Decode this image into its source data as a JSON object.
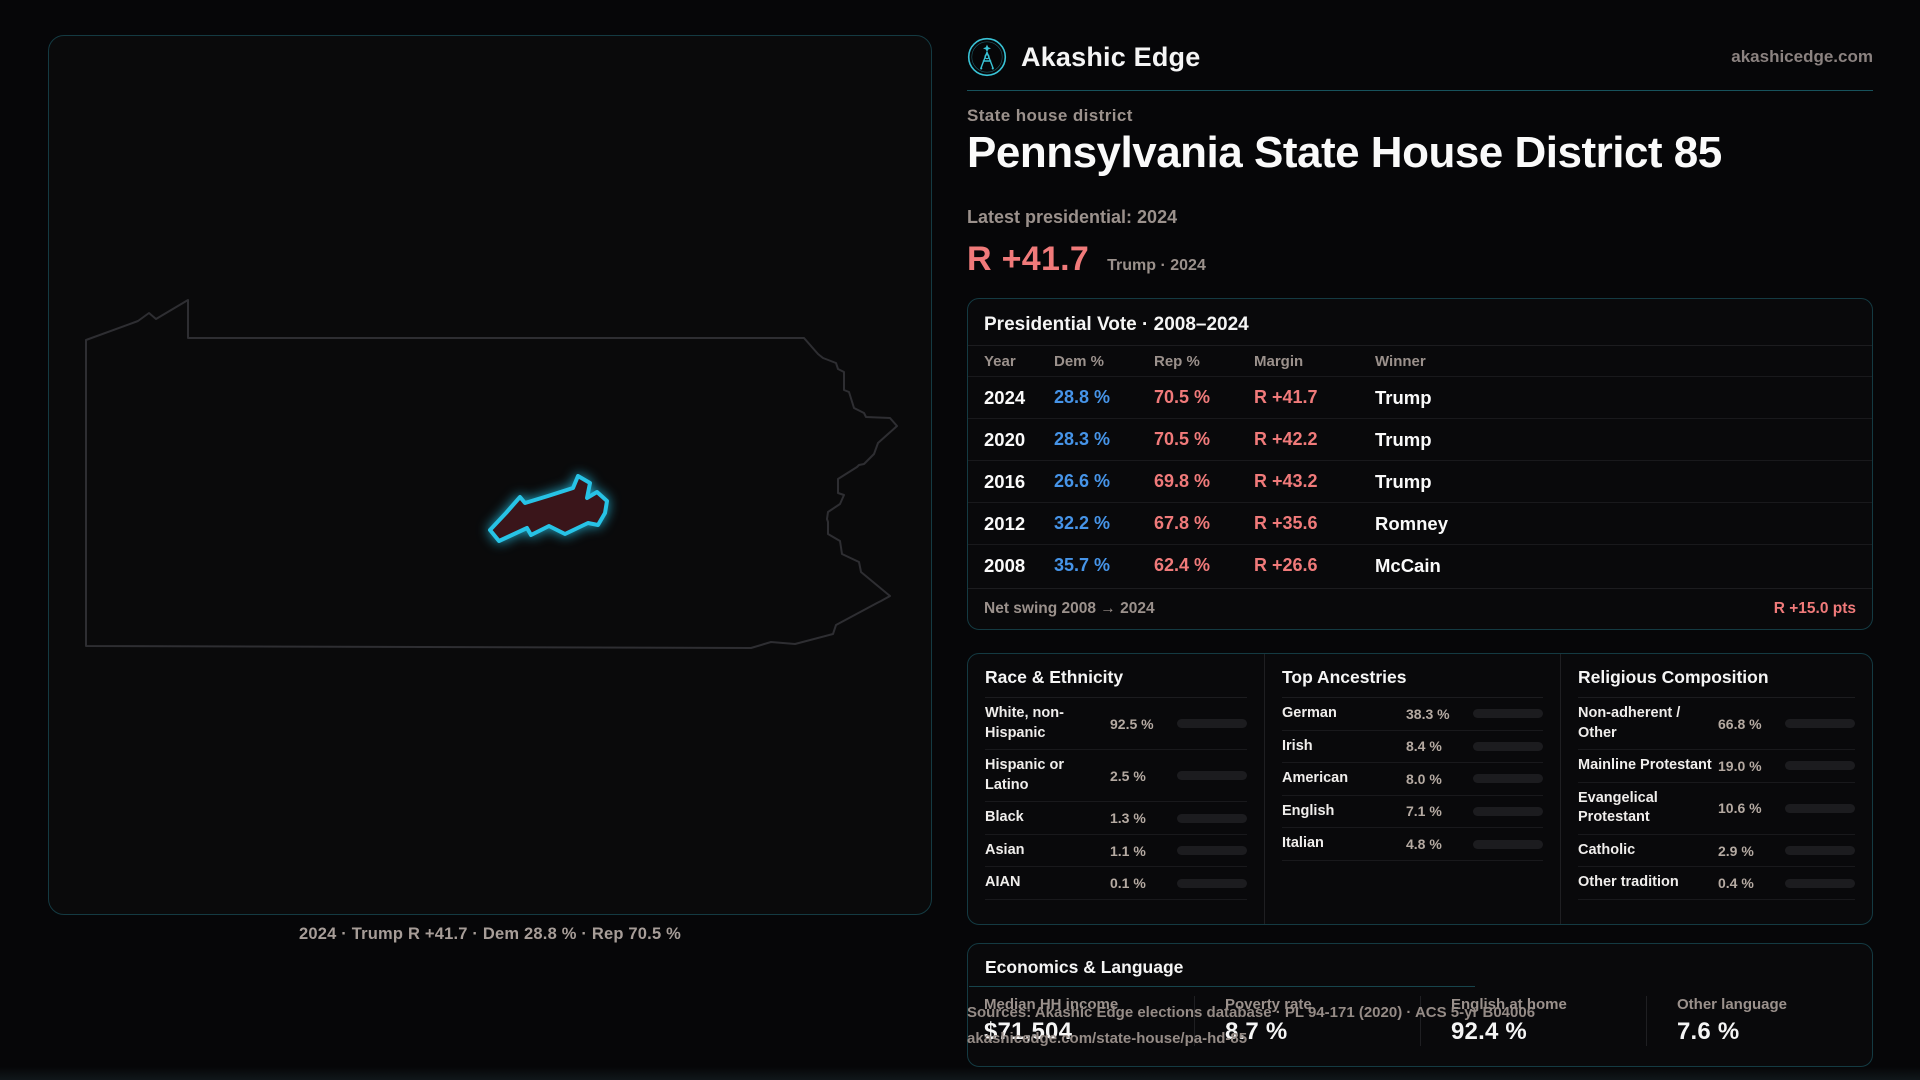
{
  "header": {
    "brand": "Akashic Edge",
    "domain": "akashicedge.com"
  },
  "hero": {
    "kicker": "State house district",
    "title": "Pennsylvania State House District 85",
    "latest": "Latest presidential: 2024",
    "margin": "R +41.7",
    "margin_note": "Trump · 2024"
  },
  "map": {
    "caption": "2024 · Trump R +41.7 · Dem 28.8 % · Rep 70.5 %"
  },
  "pres": {
    "title": "Presidential Vote · 2008–2024",
    "columns": [
      "Year",
      "Dem %",
      "Rep %",
      "Margin",
      "Winner"
    ],
    "rows": [
      {
        "year": "2024",
        "dem": "28.8 %",
        "rep": "70.5 %",
        "margin": "R +41.7",
        "winner": "Trump"
      },
      {
        "year": "2020",
        "dem": "28.3 %",
        "rep": "70.5 %",
        "margin": "R +42.2",
        "winner": "Trump"
      },
      {
        "year": "2016",
        "dem": "26.6 %",
        "rep": "69.8 %",
        "margin": "R +43.2",
        "winner": "Trump"
      },
      {
        "year": "2012",
        "dem": "32.2 %",
        "rep": "67.8 %",
        "margin": "R +35.6",
        "winner": "Romney"
      },
      {
        "year": "2008",
        "dem": "35.7 %",
        "rep": "62.4 %",
        "margin": "R +26.6",
        "winner": "McCain"
      }
    ],
    "net_label": "Net swing 2008 → 2024",
    "net_value": "R +15.0 pts"
  },
  "race": {
    "title": "Race & Ethnicity",
    "rows": [
      {
        "label": "White, non-Hispanic",
        "value": "92.5 %",
        "pct": 92.5,
        "color": "#a9bdd3"
      },
      {
        "label": "Hispanic or Latino",
        "value": "2.5 %",
        "pct": 2.5,
        "color": "#e0932f"
      },
      {
        "label": "Black",
        "value": "1.3 %",
        "pct": 1.3,
        "color": "#8f7df0"
      },
      {
        "label": "Asian",
        "value": "1.1 %",
        "pct": 1.1,
        "color": "#2fbf9a"
      },
      {
        "label": "AIAN",
        "value": "0.1 %",
        "pct": 0.1,
        "color": "#6b7280"
      }
    ]
  },
  "anc": {
    "title": "Top Ancestries",
    "rows": [
      {
        "label": "German",
        "value": "38.3 %",
        "pct": 38.3,
        "color": "#a9bdd3"
      },
      {
        "label": "Irish",
        "value": "8.4 %",
        "pct": 8.4,
        "color": "#a9bdd3"
      },
      {
        "label": "American",
        "value": "8.0 %",
        "pct": 8.0,
        "color": "#a9bdd3"
      },
      {
        "label": "English",
        "value": "7.1 %",
        "pct": 7.1,
        "color": "#a9bdd3"
      },
      {
        "label": "Italian",
        "value": "4.8 %",
        "pct": 4.8,
        "color": "#a9bdd3"
      }
    ]
  },
  "rel": {
    "title": "Religious Composition",
    "rows": [
      {
        "label": "Non-adherent / Other",
        "value": "66.8 %",
        "pct": 66.8,
        "color": "#8a909a"
      },
      {
        "label": "Mainline Protestant",
        "value": "19.0 %",
        "pct": 19.0,
        "color": "#4694e8"
      },
      {
        "label": "Evangelical Protestant",
        "value": "10.6 %",
        "pct": 10.6,
        "color": "#e06c6c"
      },
      {
        "label": "Catholic",
        "value": "2.9 %",
        "pct": 2.9,
        "color": "#ddb52f"
      },
      {
        "label": "Other tradition",
        "value": "0.4 %",
        "pct": 0.4,
        "color": "#6b7280"
      }
    ]
  },
  "econ": {
    "title": "Economics & Language",
    "stats": [
      {
        "label": "Median HH income",
        "value": "$71,504"
      },
      {
        "label": "Poverty rate",
        "value": "8.7 %"
      },
      {
        "label": "English at home",
        "value": "92.4 %"
      },
      {
        "label": "Other language",
        "value": "7.6 %"
      }
    ]
  },
  "source": {
    "line1": "Sources: Akashic Edge elections database · PL 94-171 (2020) · ACS 5-yr B04006",
    "line2": "akashicedge.com/state-house/pa-hd-85"
  },
  "colors": {
    "accent_teal": "#2cc9e4",
    "dem_blue": "#4694e8",
    "rep_red": "#f07a7a",
    "district_fill": "#3a151a",
    "district_stroke": "#27c3e6"
  }
}
